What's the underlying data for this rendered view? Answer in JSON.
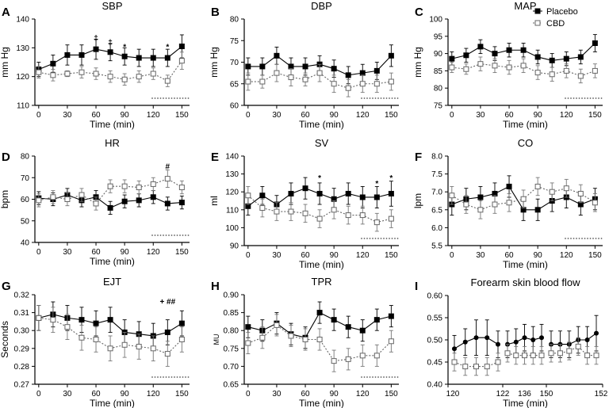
{
  "figure": {
    "legend": [
      {
        "label": "Placebo",
        "marker": "filled-square",
        "line": "solid",
        "color": "#000000"
      },
      {
        "label": "CBD",
        "marker": "open-square",
        "line": "dotted",
        "color": "#555555"
      }
    ]
  },
  "chart_data": [
    {
      "id": "A",
      "type": "line",
      "title": "SBP",
      "xlabel": "Time (min)",
      "ylabel": "mm Hg",
      "ylim": [
        110,
        140
      ],
      "yticks": [
        110,
        120,
        130,
        140
      ],
      "xticks": [
        0,
        30,
        60,
        90,
        120,
        150
      ],
      "x": [
        0,
        15,
        30,
        45,
        60,
        75,
        90,
        105,
        120,
        135,
        150
      ],
      "series": [
        {
          "name": "Placebo",
          "values": [
            122.5,
            124.5,
            127.5,
            127.5,
            129.5,
            128.5,
            127.0,
            126.5,
            126.5,
            126.5,
            130.5
          ],
          "err": [
            2.5,
            3,
            3.5,
            3.5,
            3.5,
            3,
            3,
            3,
            3,
            3,
            4
          ]
        },
        {
          "name": "CBD",
          "values": [
            121.5,
            120.5,
            121.0,
            121.5,
            121.0,
            120.0,
            119.0,
            120.0,
            121.0,
            118.5,
            125.5
          ],
          "err": [
            2,
            2,
            1,
            2,
            2,
            2,
            2,
            2,
            2,
            2,
            3
          ]
        }
      ],
      "annotations": [
        {
          "x": 60,
          "text": "‡",
          "y": 133.5
        },
        {
          "x": 75,
          "text": "‡",
          "y": 132
        },
        {
          "x": 90,
          "text": "*",
          "y": 130.5
        },
        {
          "x": 135,
          "text": "*",
          "y": 130.5
        }
      ],
      "baseline": [
        120,
        150
      ]
    },
    {
      "id": "B",
      "type": "line",
      "title": "DBP",
      "xlabel": "Time (min)",
      "ylabel": "mm Hg",
      "ylim": [
        60,
        80
      ],
      "yticks": [
        60,
        65,
        70,
        75,
        80
      ],
      "xticks": [
        0,
        30,
        60,
        90,
        120,
        150
      ],
      "x": [
        0,
        15,
        30,
        45,
        60,
        75,
        90,
        105,
        120,
        135,
        150
      ],
      "series": [
        {
          "name": "Placebo",
          "values": [
            69.0,
            69.0,
            71.5,
            69.0,
            69.0,
            69.5,
            68.5,
            67.0,
            67.5,
            68.0,
            71.5
          ],
          "err": [
            2,
            2,
            2,
            2,
            2,
            2,
            2,
            2,
            2,
            2,
            2.5
          ]
        },
        {
          "name": "CBD",
          "values": [
            65.5,
            65.5,
            67.5,
            66.5,
            66.0,
            67.5,
            65.0,
            64.0,
            65.0,
            65.0,
            65.5
          ],
          "err": [
            2,
            1.5,
            2,
            2,
            1.5,
            2,
            2,
            2,
            2,
            2,
            2
          ]
        }
      ],
      "annotations": [],
      "baseline": [
        120,
        150
      ]
    },
    {
      "id": "C",
      "type": "line",
      "title": "MAP",
      "xlabel": "Time (min)",
      "ylabel": "mm Hg",
      "ylim": [
        75,
        100
      ],
      "yticks": [
        75,
        80,
        85,
        90,
        95,
        100
      ],
      "xticks": [
        0,
        30,
        60,
        90,
        120,
        150
      ],
      "x": [
        0,
        15,
        30,
        45,
        60,
        75,
        90,
        105,
        120,
        135,
        150
      ],
      "series": [
        {
          "name": "Placebo",
          "values": [
            88.5,
            89.5,
            92.0,
            90.0,
            91.0,
            91.0,
            89.0,
            88.0,
            88.5,
            89.0,
            93.0
          ],
          "err": [
            2,
            2,
            2,
            2,
            2,
            2,
            2,
            2,
            2,
            2,
            2.5
          ]
        },
        {
          "name": "CBD",
          "values": [
            86.0,
            85.5,
            87.0,
            86.5,
            86.0,
            86.5,
            84.5,
            84.0,
            85.0,
            83.5,
            85.0
          ],
          "err": [
            1.5,
            1.5,
            2,
            2,
            2,
            2,
            2,
            2,
            2,
            2,
            2
          ]
        }
      ],
      "annotations": [],
      "baseline": [
        120,
        150
      ]
    },
    {
      "id": "D",
      "type": "line",
      "title": "HR",
      "xlabel": "Time (min)",
      "ylabel": "bpm",
      "ylim": [
        40,
        80
      ],
      "yticks": [
        40,
        50,
        60,
        70,
        80
      ],
      "xticks": [
        0,
        30,
        60,
        90,
        120,
        150
      ],
      "x": [
        0,
        15,
        30,
        45,
        60,
        75,
        90,
        105,
        120,
        135,
        150
      ],
      "series": [
        {
          "name": "Placebo",
          "values": [
            60.5,
            60.0,
            62.0,
            59.5,
            61.0,
            56.0,
            59.0,
            59.5,
            61.0,
            58.0,
            58.5
          ],
          "err": [
            3,
            3,
            3,
            3,
            3,
            3,
            3,
            3,
            3,
            3,
            3
          ]
        },
        {
          "name": "CBD",
          "values": [
            59.5,
            61.0,
            60.0,
            62.0,
            58.0,
            66.0,
            66.0,
            65.5,
            67.0,
            69.5,
            65.5
          ],
          "err": [
            3,
            3,
            3,
            3,
            3,
            3,
            3,
            3,
            3,
            4,
            3
          ]
        }
      ],
      "annotations": [
        {
          "x": 135,
          "text": "#",
          "y": 75.5
        }
      ],
      "baseline": [
        120,
        150
      ]
    },
    {
      "id": "E",
      "type": "line",
      "title": "SV",
      "xlabel": "Time (min)",
      "ylabel": "ml",
      "ylim": [
        90,
        140
      ],
      "yticks": [
        90,
        100,
        110,
        120,
        130,
        140
      ],
      "xticks": [
        0,
        30,
        60,
        90,
        120,
        150
      ],
      "x": [
        0,
        15,
        30,
        45,
        60,
        75,
        90,
        105,
        120,
        135,
        150
      ],
      "series": [
        {
          "name": "Placebo",
          "values": [
            112,
            118,
            113,
            119,
            122,
            119,
            116,
            119,
            117,
            117,
            119
          ],
          "err": [
            5,
            5,
            5,
            6,
            6,
            6,
            6,
            6,
            6,
            6,
            7
          ]
        },
        {
          "name": "CBD",
          "values": [
            118,
            111,
            109,
            109,
            108,
            105,
            110,
            107,
            107,
            103,
            105
          ],
          "err": [
            5,
            5,
            5,
            5,
            5,
            5,
            5,
            5,
            5,
            5,
            5
          ]
        }
      ],
      "annotations": [
        {
          "x": 75,
          "text": "*",
          "y": 128
        },
        {
          "x": 135,
          "text": "*",
          "y": 125
        },
        {
          "x": 150,
          "text": "*",
          "y": 128
        }
      ],
      "baseline": [
        120,
        150
      ]
    },
    {
      "id": "F",
      "type": "line",
      "title": "CO",
      "xlabel": "Time (min)",
      "ylabel": "lpm",
      "ylim": [
        5.5,
        8.0
      ],
      "yticks": [
        5.5,
        6.0,
        6.5,
        7.0,
        7.5,
        8.0
      ],
      "xticks": [
        0,
        30,
        60,
        90,
        120,
        150
      ],
      "x": [
        0,
        15,
        30,
        45,
        60,
        75,
        90,
        105,
        120,
        135,
        150
      ],
      "series": [
        {
          "name": "Placebo",
          "values": [
            6.65,
            6.8,
            6.85,
            6.95,
            7.15,
            6.5,
            6.5,
            6.75,
            6.85,
            6.65,
            6.8
          ],
          "err": [
            0.3,
            0.3,
            0.3,
            0.3,
            0.3,
            0.3,
            0.3,
            0.3,
            0.3,
            0.3,
            0.3
          ]
        },
        {
          "name": "CBD",
          "values": [
            6.9,
            6.65,
            6.5,
            6.65,
            6.7,
            6.8,
            7.15,
            7.0,
            7.1,
            6.95,
            6.7
          ],
          "err": [
            0.25,
            0.25,
            0.25,
            0.25,
            0.25,
            0.25,
            0.25,
            0.25,
            0.25,
            0.25,
            0.25
          ]
        }
      ],
      "annotations": [],
      "baseline": [
        120,
        150
      ]
    },
    {
      "id": "G",
      "type": "line",
      "title": "EJT",
      "xlabel": "Time (min)",
      "ylabel": "Seconds",
      "ylim": [
        0.27,
        0.32
      ],
      "yticks": [
        0.27,
        0.28,
        0.29,
        0.3,
        0.31,
        0.32
      ],
      "xticks": [
        0,
        30,
        60,
        90,
        120,
        150
      ],
      "x": [
        0,
        15,
        30,
        45,
        60,
        75,
        90,
        105,
        120,
        135,
        150
      ],
      "series": [
        {
          "name": "Placebo",
          "values": [
            0.307,
            0.309,
            0.307,
            0.306,
            0.304,
            0.306,
            0.299,
            0.298,
            0.297,
            0.299,
            0.304
          ],
          "err": [
            0.007,
            0.007,
            0.007,
            0.007,
            0.007,
            0.007,
            0.007,
            0.007,
            0.007,
            0.007,
            0.007
          ]
        },
        {
          "name": "CBD",
          "values": [
            0.307,
            0.306,
            0.302,
            0.296,
            0.295,
            0.29,
            0.292,
            0.291,
            0.29,
            0.287,
            0.295
          ],
          "err": [
            0.007,
            0.007,
            0.007,
            0.007,
            0.007,
            0.007,
            0.007,
            0.007,
            0.007,
            0.007,
            0.007
          ]
        }
      ],
      "annotations": [
        {
          "x": 135,
          "text": "+ ##",
          "y": 0.3165
        }
      ],
      "baseline": [
        120,
        150
      ]
    },
    {
      "id": "H",
      "type": "line",
      "title": "TPR",
      "xlabel": "Time (min)",
      "ylabel": "MU",
      "ylim": [
        0.65,
        0.9
      ],
      "yticks": [
        0.65,
        0.7,
        0.75,
        0.8,
        0.85,
        0.9
      ],
      "xticks": [
        0,
        30,
        60,
        90,
        120,
        150
      ],
      "x": [
        0,
        15,
        30,
        45,
        60,
        75,
        90,
        105,
        120,
        135,
        150
      ],
      "series": [
        {
          "name": "Placebo",
          "values": [
            0.81,
            0.8,
            0.82,
            0.79,
            0.78,
            0.85,
            0.83,
            0.81,
            0.8,
            0.83,
            0.84
          ],
          "err": [
            0.03,
            0.03,
            0.03,
            0.03,
            0.03,
            0.03,
            0.03,
            0.03,
            0.03,
            0.03,
            0.03
          ]
        },
        {
          "name": "CBD",
          "values": [
            0.765,
            0.78,
            0.815,
            0.785,
            0.775,
            0.775,
            0.715,
            0.72,
            0.73,
            0.73,
            0.77
          ],
          "err": [
            0.03,
            0.03,
            0.03,
            0.03,
            0.03,
            0.03,
            0.03,
            0.03,
            0.03,
            0.03,
            0.03
          ]
        }
      ],
      "annotations": [],
      "baseline": [
        120,
        150
      ]
    },
    {
      "id": "I",
      "type": "line",
      "title": "Forearm skin blood flow",
      "xlabel": "Time (min)",
      "ylabel": "",
      "ylim": [
        0.4,
        0.6
      ],
      "yticks": [
        0.4,
        0.45,
        0.5,
        0.55,
        0.6
      ],
      "segments": [
        {
          "label_start": "120",
          "label_end": "122"
        },
        {
          "label_mid": "136"
        },
        {
          "label_start": "150",
          "label_end": "152"
        }
      ],
      "series": [
        {
          "name": "Placebo",
          "values": [
            0.48,
            0.495,
            0.505,
            0.505,
            0.49,
            0.49,
            0.495,
            0.505,
            0.5,
            0.505,
            0.49,
            0.49,
            0.49,
            0.5,
            0.5,
            0.515
          ],
          "err": [
            0.03,
            0.03,
            0.04,
            0.04,
            0.03,
            0.03,
            0.03,
            0.03,
            0.03,
            0.03,
            0.03,
            0.03,
            0.03,
            0.03,
            0.03,
            0.04
          ]
        },
        {
          "name": "CBD",
          "values": [
            0.45,
            0.44,
            0.44,
            0.44,
            0.45,
            0.47,
            0.465,
            0.465,
            0.465,
            0.465,
            0.47,
            0.47,
            0.475,
            0.485,
            0.465,
            0.465
          ],
          "err": [
            0.02,
            0.02,
            0.02,
            0.02,
            0.02,
            0.02,
            0.02,
            0.02,
            0.02,
            0.02,
            0.02,
            0.02,
            0.02,
            0.02,
            0.02,
            0.02
          ]
        }
      ],
      "annotations": []
    }
  ]
}
